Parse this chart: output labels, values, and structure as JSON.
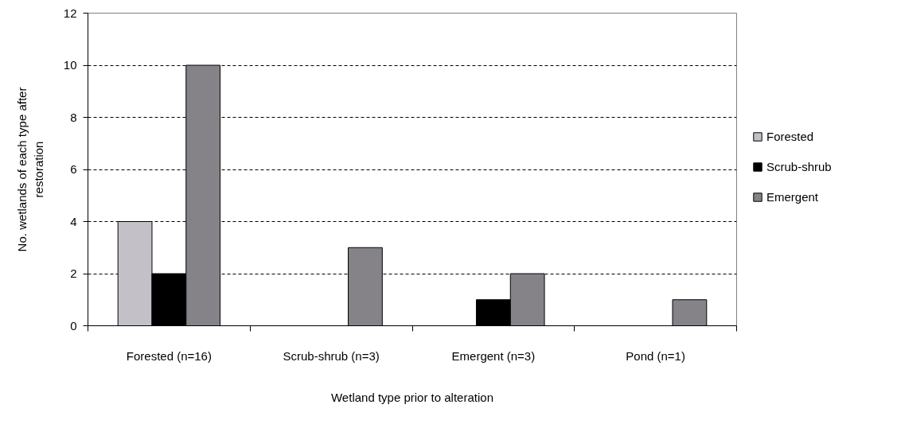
{
  "chart_data": {
    "type": "bar",
    "xlabel": "Wetland type prior to alteration",
    "ylabel": "No. wetlands of each type after restoration",
    "categories": [
      "Forested (n=16)",
      "Scrub-shrub (n=3)",
      "Emergent (n=3)",
      "Pond (n=1)"
    ],
    "series": [
      {
        "name": "Forested",
        "color": "#c3c1c7",
        "values": [
          4,
          0,
          0,
          0
        ]
      },
      {
        "name": "Scrub-shrub",
        "color": "#000000",
        "values": [
          2,
          0,
          1,
          0
        ]
      },
      {
        "name": "Emergent",
        "color": "#858388",
        "values": [
          10,
          3,
          2,
          1
        ]
      }
    ],
    "ylim": [
      0,
      12
    ],
    "yticks": [
      0,
      2,
      4,
      6,
      8,
      10,
      12
    ],
    "grid": "y",
    "legend": "right"
  }
}
